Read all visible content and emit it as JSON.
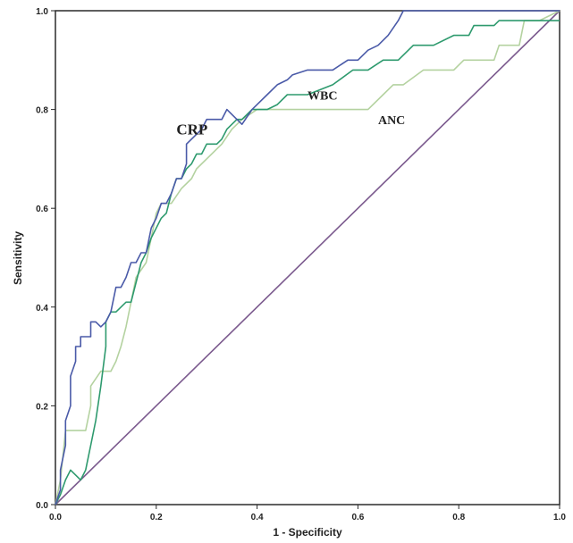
{
  "chart_data": {
    "type": "line",
    "title": "",
    "xlabel": "1 - Specificity",
    "ylabel": "Sensitivity",
    "xlim": [
      0,
      1
    ],
    "ylim": [
      0,
      1
    ],
    "xticks": [
      "0.0",
      "0.2",
      "0.4",
      "0.6",
      "0.8",
      "1.0"
    ],
    "yticks": [
      "0.0",
      "0.2",
      "0.4",
      "0.6",
      "0.8",
      "1.0"
    ],
    "grid": false,
    "legend": "none",
    "series": [
      {
        "name": "CRP",
        "color": "#4a5aa8",
        "x": [
          0,
          0.01,
          0.01,
          0.02,
          0.02,
          0.03,
          0.03,
          0.04,
          0.04,
          0.05,
          0.05,
          0.07,
          0.07,
          0.08,
          0.09,
          0.1,
          0.11,
          0.12,
          0.13,
          0.14,
          0.15,
          0.16,
          0.17,
          0.18,
          0.19,
          0.2,
          0.21,
          0.22,
          0.23,
          0.24,
          0.25,
          0.26,
          0.26,
          0.29,
          0.3,
          0.31,
          0.33,
          0.34,
          0.36,
          0.37,
          0.39,
          0.4,
          0.42,
          0.44,
          0.46,
          0.47,
          0.5,
          0.55,
          0.58,
          0.6,
          0.62,
          0.64,
          0.66,
          0.68,
          0.69,
          0.7,
          0.8,
          0.93,
          1.0
        ],
        "y": [
          0,
          0.03,
          0.07,
          0.12,
          0.17,
          0.2,
          0.26,
          0.29,
          0.32,
          0.32,
          0.34,
          0.34,
          0.37,
          0.37,
          0.36,
          0.37,
          0.39,
          0.44,
          0.44,
          0.46,
          0.49,
          0.49,
          0.51,
          0.51,
          0.56,
          0.58,
          0.61,
          0.61,
          0.63,
          0.66,
          0.66,
          0.69,
          0.73,
          0.76,
          0.78,
          0.78,
          0.78,
          0.8,
          0.78,
          0.77,
          0.8,
          0.81,
          0.83,
          0.85,
          0.86,
          0.87,
          0.88,
          0.88,
          0.9,
          0.9,
          0.92,
          0.93,
          0.95,
          0.98,
          1.0,
          1.0,
          1.0,
          1.0,
          1.0
        ]
      },
      {
        "name": "WBC",
        "color": "#2e9a6e",
        "x": [
          0,
          0.01,
          0.02,
          0.03,
          0.05,
          0.06,
          0.07,
          0.08,
          0.09,
          0.1,
          0.1,
          0.11,
          0.12,
          0.14,
          0.15,
          0.17,
          0.18,
          0.19,
          0.2,
          0.21,
          0.22,
          0.23,
          0.24,
          0.25,
          0.26,
          0.27,
          0.28,
          0.29,
          0.3,
          0.32,
          0.33,
          0.34,
          0.36,
          0.37,
          0.39,
          0.4,
          0.42,
          0.44,
          0.46,
          0.5,
          0.55,
          0.59,
          0.62,
          0.65,
          0.68,
          0.71,
          0.75,
          0.79,
          0.82,
          0.83,
          0.87,
          0.88,
          0.93,
          1.0
        ],
        "y": [
          0,
          0.02,
          0.05,
          0.07,
          0.05,
          0.07,
          0.12,
          0.17,
          0.24,
          0.32,
          0.37,
          0.39,
          0.39,
          0.41,
          0.41,
          0.49,
          0.51,
          0.54,
          0.56,
          0.58,
          0.59,
          0.63,
          0.66,
          0.66,
          0.68,
          0.69,
          0.71,
          0.71,
          0.73,
          0.73,
          0.74,
          0.76,
          0.78,
          0.78,
          0.8,
          0.8,
          0.8,
          0.81,
          0.83,
          0.83,
          0.85,
          0.88,
          0.88,
          0.9,
          0.9,
          0.93,
          0.93,
          0.95,
          0.95,
          0.97,
          0.97,
          0.98,
          0.98,
          0.98
        ]
      },
      {
        "name": "ANC",
        "color": "#b4d2a0",
        "x": [
          0,
          0.01,
          0.02,
          0.03,
          0.05,
          0.06,
          0.07,
          0.07,
          0.09,
          0.11,
          0.12,
          0.13,
          0.14,
          0.16,
          0.18,
          0.19,
          0.2,
          0.21,
          0.23,
          0.25,
          0.27,
          0.28,
          0.3,
          0.33,
          0.35,
          0.37,
          0.4,
          0.43,
          0.47,
          0.52,
          0.58,
          0.62,
          0.65,
          0.67,
          0.69,
          0.73,
          0.79,
          0.81,
          0.83,
          0.87,
          0.88,
          0.92,
          0.93,
          0.96,
          1.0
        ],
        "y": [
          0,
          0.05,
          0.15,
          0.15,
          0.15,
          0.15,
          0.2,
          0.24,
          0.27,
          0.27,
          0.29,
          0.32,
          0.36,
          0.46,
          0.49,
          0.54,
          0.59,
          0.61,
          0.61,
          0.64,
          0.66,
          0.68,
          0.7,
          0.73,
          0.76,
          0.78,
          0.8,
          0.8,
          0.8,
          0.8,
          0.8,
          0.8,
          0.83,
          0.85,
          0.85,
          0.88,
          0.88,
          0.9,
          0.9,
          0.9,
          0.93,
          0.93,
          0.98,
          0.98,
          1.0
        ]
      },
      {
        "name": "",
        "color": "#7b5a8e",
        "x": [
          0,
          1
        ],
        "y": [
          0,
          1
        ]
      }
    ],
    "annotations": [
      {
        "text": "CRP",
        "x": 0.24,
        "y": 0.75
      },
      {
        "text": "WBC",
        "x": 0.5,
        "y": 0.82
      },
      {
        "text": "ANC",
        "x": 0.64,
        "y": 0.77
      }
    ]
  }
}
